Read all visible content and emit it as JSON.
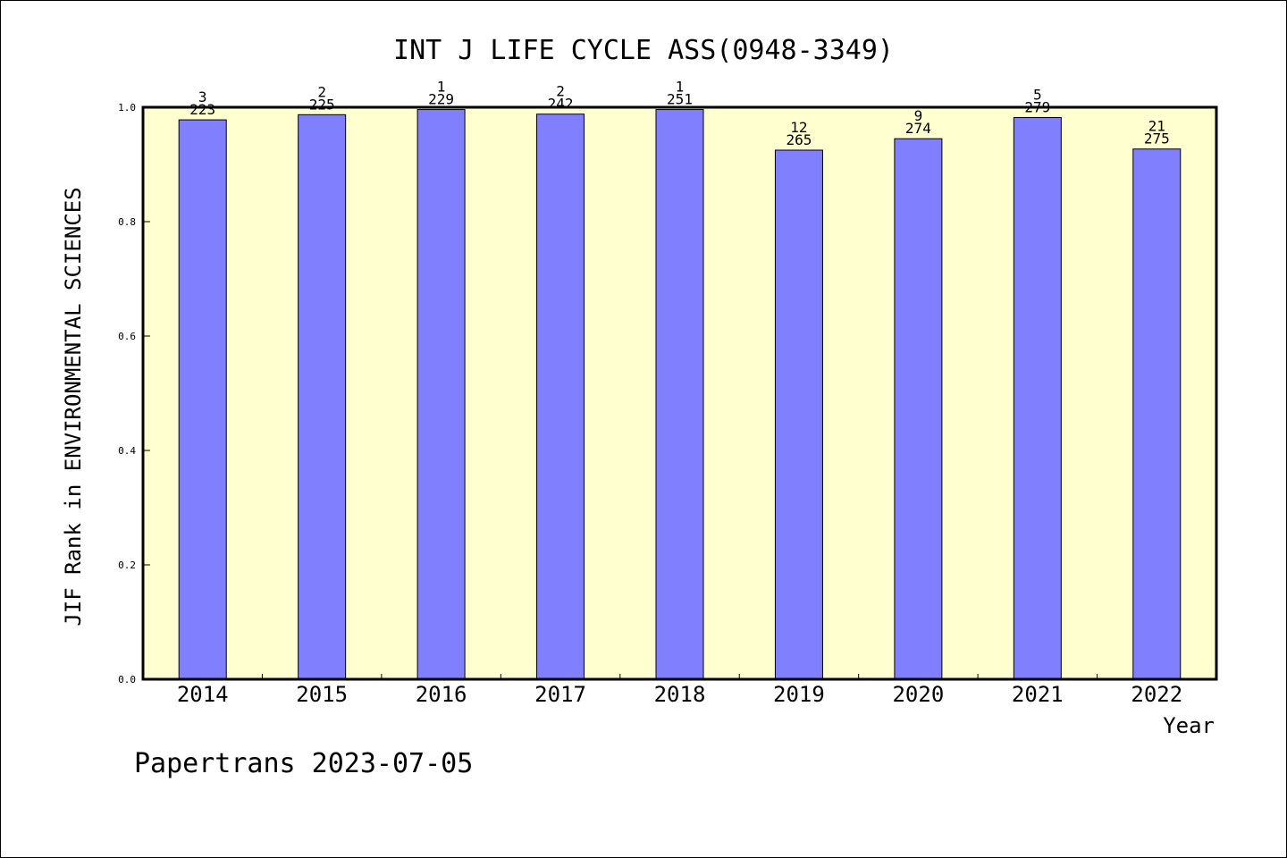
{
  "chart_data": {
    "type": "bar",
    "title": "INT J LIFE CYCLE ASS(0948-3349)",
    "xlabel": "Year",
    "ylabel": "JIF Rank in ENVIRONMENTAL SCIENCES",
    "ylim": [
      0,
      1.0
    ],
    "yticks": [
      "0.0",
      "0.2",
      "0.4",
      "0.6",
      "0.8",
      "1.0"
    ],
    "categories": [
      "2014",
      "2015",
      "2016",
      "2017",
      "2018",
      "2019",
      "2020",
      "2021",
      "2022"
    ],
    "values": [
      0.978,
      0.987,
      0.996,
      0.988,
      0.996,
      0.925,
      0.945,
      0.982,
      0.927
    ],
    "ranks": [
      "3",
      "2",
      "1",
      "2",
      "1",
      "12",
      "9",
      "5",
      "21"
    ],
    "totals": [
      "223",
      "225",
      "229",
      "242",
      "251",
      "265",
      "274",
      "279",
      "275"
    ],
    "grid": false,
    "colors": {
      "bar": "#8080ff",
      "plot_bg": "#ffffd0",
      "frame": "#000000"
    }
  },
  "footer": {
    "credit": "Papertrans 2023-07-05"
  }
}
